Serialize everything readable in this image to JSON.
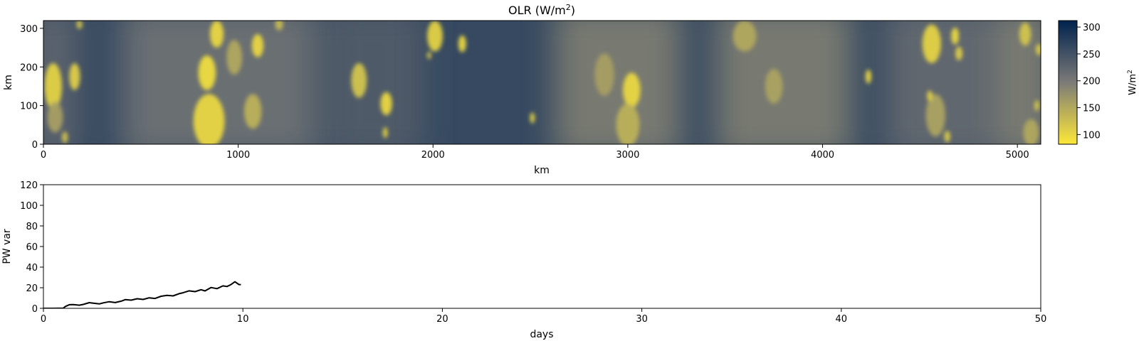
{
  "chart_data": [
    {
      "type": "heatmap",
      "title": "OLR (W/m",
      "title_sup": "2",
      "title_end": ")",
      "xlabel": "km",
      "ylabel": "km",
      "xlim": [
        0,
        5120
      ],
      "ylim": [
        0,
        320
      ],
      "xticks": [
        0,
        1000,
        2000,
        3000,
        4000,
        5000
      ],
      "yticks": [
        0,
        100,
        200,
        300
      ],
      "colorbar": {
        "label": "W/m",
        "label_sup": "2",
        "range": [
          82,
          312
        ],
        "ticks": [
          100,
          150,
          200,
          250,
          300
        ],
        "colormap": "cividis_r",
        "low_color": "#fde838",
        "mid_color": "#7c7b78",
        "high_color": "#00224e"
      },
      "background_level": 262,
      "cloud_bands": [
        {
          "x": 900,
          "width": 1000,
          "level": 205
        },
        {
          "x": 1700,
          "width": 500,
          "level": 235
        },
        {
          "x": 2950,
          "width": 650,
          "level": 190
        },
        {
          "x": 3800,
          "width": 700,
          "level": 190
        },
        {
          "x": 4650,
          "width": 650,
          "level": 215
        },
        {
          "x": 5050,
          "width": 280,
          "level": 190
        },
        {
          "x": 50,
          "width": 250,
          "level": 220
        }
      ],
      "cells": [
        {
          "x": 50,
          "y": 150,
          "rx": 45,
          "ry": 60,
          "olr": 105
        },
        {
          "x": 160,
          "y": 175,
          "rx": 28,
          "ry": 35,
          "olr": 110
        },
        {
          "x": 60,
          "y": 70,
          "rx": 40,
          "ry": 40,
          "olr": 160
        },
        {
          "x": 110,
          "y": 18,
          "rx": 15,
          "ry": 15,
          "olr": 120
        },
        {
          "x": 185,
          "y": 310,
          "rx": 15,
          "ry": 12,
          "olr": 120
        },
        {
          "x": 850,
          "y": 60,
          "rx": 80,
          "ry": 70,
          "olr": 100
        },
        {
          "x": 840,
          "y": 185,
          "rx": 45,
          "ry": 45,
          "olr": 95
        },
        {
          "x": 890,
          "y": 285,
          "rx": 35,
          "ry": 35,
          "olr": 100
        },
        {
          "x": 1100,
          "y": 255,
          "rx": 30,
          "ry": 30,
          "olr": 100
        },
        {
          "x": 1075,
          "y": 85,
          "rx": 45,
          "ry": 45,
          "olr": 140
        },
        {
          "x": 980,
          "y": 225,
          "rx": 40,
          "ry": 45,
          "olr": 150
        },
        {
          "x": 1210,
          "y": 310,
          "rx": 20,
          "ry": 15,
          "olr": 130
        },
        {
          "x": 1620,
          "y": 165,
          "rx": 40,
          "ry": 45,
          "olr": 120
        },
        {
          "x": 1760,
          "y": 105,
          "rx": 30,
          "ry": 30,
          "olr": 100
        },
        {
          "x": 1755,
          "y": 30,
          "rx": 12,
          "ry": 14,
          "olr": 100
        },
        {
          "x": 2010,
          "y": 280,
          "rx": 40,
          "ry": 40,
          "olr": 105
        },
        {
          "x": 2150,
          "y": 260,
          "rx": 20,
          "ry": 22,
          "olr": 100
        },
        {
          "x": 1980,
          "y": 230,
          "rx": 10,
          "ry": 10,
          "olr": 110
        },
        {
          "x": 2510,
          "y": 68,
          "rx": 12,
          "ry": 14,
          "olr": 100
        },
        {
          "x": 3020,
          "y": 140,
          "rx": 45,
          "ry": 45,
          "olr": 100
        },
        {
          "x": 3000,
          "y": 50,
          "rx": 60,
          "ry": 55,
          "olr": 140
        },
        {
          "x": 2880,
          "y": 180,
          "rx": 50,
          "ry": 55,
          "olr": 160
        },
        {
          "x": 3600,
          "y": 280,
          "rx": 60,
          "ry": 40,
          "olr": 150
        },
        {
          "x": 3750,
          "y": 150,
          "rx": 45,
          "ry": 45,
          "olr": 155
        },
        {
          "x": 4235,
          "y": 175,
          "rx": 15,
          "ry": 18,
          "olr": 100
        },
        {
          "x": 4560,
          "y": 260,
          "rx": 48,
          "ry": 50,
          "olr": 105
        },
        {
          "x": 4680,
          "y": 280,
          "rx": 20,
          "ry": 22,
          "olr": 100
        },
        {
          "x": 4700,
          "y": 235,
          "rx": 18,
          "ry": 18,
          "olr": 110
        },
        {
          "x": 4580,
          "y": 75,
          "rx": 50,
          "ry": 55,
          "olr": 155
        },
        {
          "x": 4640,
          "y": 20,
          "rx": 15,
          "ry": 15,
          "olr": 110
        },
        {
          "x": 4550,
          "y": 125,
          "rx": 14,
          "ry": 14,
          "olr": 105
        },
        {
          "x": 5040,
          "y": 285,
          "rx": 30,
          "ry": 30,
          "olr": 120
        },
        {
          "x": 5110,
          "y": 245,
          "rx": 15,
          "ry": 15,
          "olr": 110
        },
        {
          "x": 5070,
          "y": 30,
          "rx": 40,
          "ry": 35,
          "olr": 150
        },
        {
          "x": 5100,
          "y": 100,
          "rx": 12,
          "ry": 14,
          "olr": 110
        }
      ]
    },
    {
      "type": "line",
      "xlabel": "days",
      "ylabel": "PW var",
      "xlim": [
        0,
        50
      ],
      "ylim": [
        0,
        120
      ],
      "xticks": [
        0,
        10,
        20,
        30,
        40,
        50
      ],
      "yticks": [
        0,
        20,
        40,
        60,
        80,
        100,
        120
      ],
      "line_color": "#000000",
      "x": [
        0,
        0.5,
        1.0,
        1.1,
        1.3,
        1.5,
        1.8,
        2.0,
        2.3,
        2.5,
        2.8,
        3.0,
        3.3,
        3.6,
        3.9,
        4.1,
        4.4,
        4.7,
        5.0,
        5.3,
        5.6,
        5.9,
        6.2,
        6.5,
        6.8,
        7.0,
        7.3,
        7.6,
        7.9,
        8.1,
        8.4,
        8.7,
        9.0,
        9.2,
        9.4,
        9.6,
        9.8,
        9.9
      ],
      "y": [
        0,
        0,
        0.2,
        1.8,
        3.5,
        3.6,
        3.0,
        3.8,
        5.5,
        5.0,
        4.3,
        5.3,
        6.4,
        5.6,
        7.0,
        8.4,
        7.9,
        9.3,
        8.6,
        10.2,
        9.6,
        11.7,
        12.6,
        12.1,
        14.2,
        15.1,
        17.0,
        16.2,
        18.1,
        16.9,
        20.2,
        19.1,
        21.8,
        21.2,
        23.0,
        25.8,
        23.1,
        23.0
      ]
    }
  ]
}
